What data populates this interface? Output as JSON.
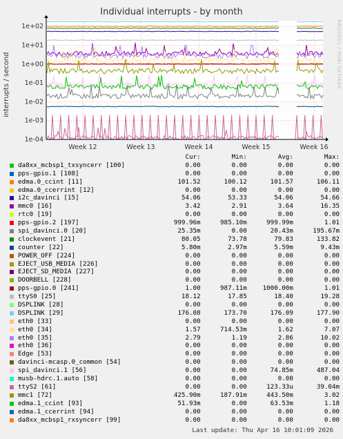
{
  "chart_data": {
    "type": "line",
    "title": "Individual interrupts - by month",
    "ylabel": "interrupts / second",
    "yscale": "log",
    "ylim": [
      0.0001,
      200
    ],
    "yticks": [
      "1e+02",
      "1e+01",
      "1e+00",
      "1e-01",
      "1e-02",
      "1e-03",
      "1e-04"
    ],
    "xticks": [
      "Week 12",
      "Week 13",
      "Week 14",
      "Week 15",
      "Week 16"
    ],
    "grid": true,
    "watermark": "RRDTOOL / TOBI OETIKER",
    "columns": [
      "Cur:",
      "Min:",
      "Avg:",
      "Max:"
    ],
    "series": [
      {
        "name": "da8xx_mcbsp1_txsyncerr [100]",
        "color": "#00cc00",
        "cur": "0.00",
        "min": "0.00",
        "avg": "0.00",
        "max": "0.00"
      },
      {
        "name": "pps-gpio.1 [108]",
        "color": "#0066b3",
        "cur": "0.00",
        "min": "0.00",
        "avg": "0.00",
        "max": "0.00"
      },
      {
        "name": "edma.0_ccint [11]",
        "color": "#ff8000",
        "cur": "101.52",
        "min": "100.12",
        "avg": "101.57",
        "max": "106.11"
      },
      {
        "name": "edma.0_ccerrint [12]",
        "color": "#ffcc00",
        "cur": "0.00",
        "min": "0.00",
        "avg": "0.00",
        "max": "0.00"
      },
      {
        "name": "i2c_davinci [15]",
        "color": "#330099",
        "cur": "54.06",
        "min": "53.33",
        "avg": "54.06",
        "max": "54.66"
      },
      {
        "name": "mmc0 [16]",
        "color": "#990099",
        "cur": "3.42",
        "min": "2.91",
        "avg": "3.64",
        "max": "16.35"
      },
      {
        "name": "rtc0 [19]",
        "color": "#ccff00",
        "cur": "0.00",
        "min": "0.00",
        "avg": "0.00",
        "max": "0.00"
      },
      {
        "name": "pps-gpio.2 [197]",
        "color": "#ff0000",
        "cur": "999.96m",
        "min": "985.10m",
        "avg": "999.99m",
        "max": "1.01"
      },
      {
        "name": "spi_davinci.0 [20]",
        "color": "#808080",
        "cur": "25.35m",
        "min": "0.00",
        "avg": "20.43m",
        "max": "195.67m"
      },
      {
        "name": "clockevent [21]",
        "color": "#008f00",
        "cur": "80.05",
        "min": "73.78",
        "avg": "79.83",
        "max": "133.82"
      },
      {
        "name": "counter [22]",
        "color": "#00487d",
        "cur": "5.80m",
        "min": "2.97m",
        "avg": "5.59m",
        "max": "9.43m"
      },
      {
        "name": "POWER_OFF [224]",
        "color": "#b35a00",
        "cur": "0.00",
        "min": "0.00",
        "avg": "0.00",
        "max": "0.00"
      },
      {
        "name": "EJECT_USB_MEDIA [226]",
        "color": "#b38f00",
        "cur": "0.00",
        "min": "0.00",
        "avg": "0.00",
        "max": "0.00"
      },
      {
        "name": "EJECT_SD_MEDIA [227]",
        "color": "#6b006b",
        "cur": "0.00",
        "min": "0.00",
        "avg": "0.00",
        "max": "0.00"
      },
      {
        "name": "DOORBELL [228]",
        "color": "#8fb300",
        "cur": "0.00",
        "min": "0.00",
        "avg": "0.00",
        "max": "0.00"
      },
      {
        "name": "pps-gpio.0 [241]",
        "color": "#b30000",
        "cur": "1.00",
        "min": "987.11m",
        "avg": "1000.00m",
        "max": "1.01"
      },
      {
        "name": "ttyS0 [25]",
        "color": "#bebebe",
        "cur": "18.12",
        "min": "17.85",
        "avg": "18.40",
        "max": "19.28"
      },
      {
        "name": "DSPLINK [28]",
        "color": "#80ff80",
        "cur": "0.00",
        "min": "0.00",
        "avg": "0.00",
        "max": "0.00"
      },
      {
        "name": "DSPLINK [29]",
        "color": "#80c9ff",
        "cur": "176.08",
        "min": "173.70",
        "avg": "176.09",
        "max": "177.90"
      },
      {
        "name": "eth0 [33]",
        "color": "#ffc080",
        "cur": "0.00",
        "min": "0.00",
        "avg": "0.00",
        "max": "0.00"
      },
      {
        "name": "eth0 [34]",
        "color": "#ffe680",
        "cur": "1.57",
        "min": "714.53m",
        "avg": "1.62",
        "max": "7.07"
      },
      {
        "name": "eth0 [35]",
        "color": "#aa80ff",
        "cur": "2.79",
        "min": "1.19",
        "avg": "2.86",
        "max": "10.02"
      },
      {
        "name": "eth0 [36]",
        "color": "#ee00cc",
        "cur": "0.00",
        "min": "0.00",
        "avg": "0.00",
        "max": "0.00"
      },
      {
        "name": "Edge [53]",
        "color": "#ff8080",
        "cur": "0.00",
        "min": "0.00",
        "avg": "0.00",
        "max": "0.00"
      },
      {
        "name": "davinci-mcasp.0_common [54]",
        "color": "#666600",
        "cur": "0.00",
        "min": "0.00",
        "avg": "0.00",
        "max": "0.00"
      },
      {
        "name": "spi_davinci.1 [56]",
        "color": "#ffbfff",
        "cur": "0.00",
        "min": "0.00",
        "avg": "74.85m",
        "max": "487.04"
      },
      {
        "name": "musb-hdrc.1.auto [58]",
        "color": "#00ffcc",
        "cur": "0.00",
        "min": "0.00",
        "avg": "0.00",
        "max": "0.00"
      },
      {
        "name": "ttyS2 [61]",
        "color": "#cc6699",
        "cur": "0.00",
        "min": "0.00",
        "avg": "123.33u",
        "max": "39.04m"
      },
      {
        "name": "mmc1 [72]",
        "color": "#999900",
        "cur": "425.90m",
        "min": "187.91m",
        "avg": "443.50m",
        "max": "3.02"
      },
      {
        "name": "edma.1_ccint [93]",
        "color": "#00cc00",
        "cur": "51.93m",
        "min": "0.00",
        "avg": "63.53m",
        "max": "1.18"
      },
      {
        "name": "edma.1_ccerrint [94]",
        "color": "#0066b3",
        "cur": "0.00",
        "min": "0.00",
        "avg": "0.00",
        "max": "0.00"
      },
      {
        "name": "da8xx_mcbsp1_rxsyncerr [99]",
        "color": "#ff8000",
        "cur": "0.00",
        "min": "0.00",
        "avg": "0.00",
        "max": "0.00"
      }
    ],
    "footer": "Last update: Thu Apr 16 10:01:09 2026"
  }
}
